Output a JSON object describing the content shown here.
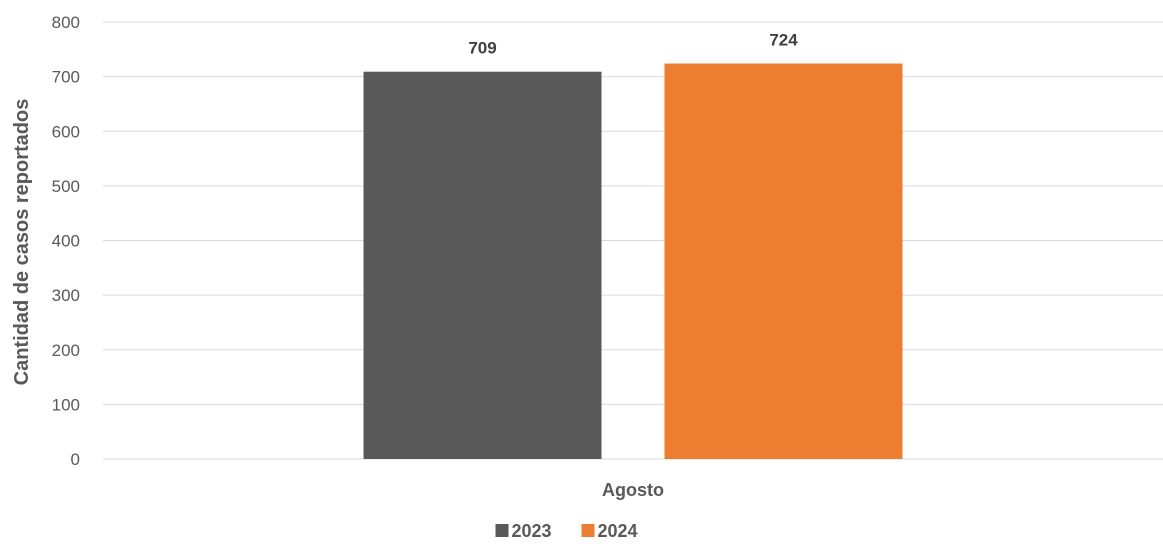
{
  "chart_data": {
    "type": "bar",
    "title": "",
    "xlabel": "",
    "ylabel": "Cantidad de casos reportados",
    "categories": [
      "Agosto"
    ],
    "series": [
      {
        "name": "2023",
        "values": [
          709
        ],
        "color": "#595959"
      },
      {
        "name": "2024",
        "values": [
          724
        ],
        "color": "#ED7D31"
      }
    ],
    "ylim": [
      0,
      800
    ],
    "yticks": [
      0,
      100,
      200,
      300,
      400,
      500,
      600,
      700,
      800
    ],
    "grid": true,
    "legend": "bottom-center",
    "data_labels": true
  }
}
